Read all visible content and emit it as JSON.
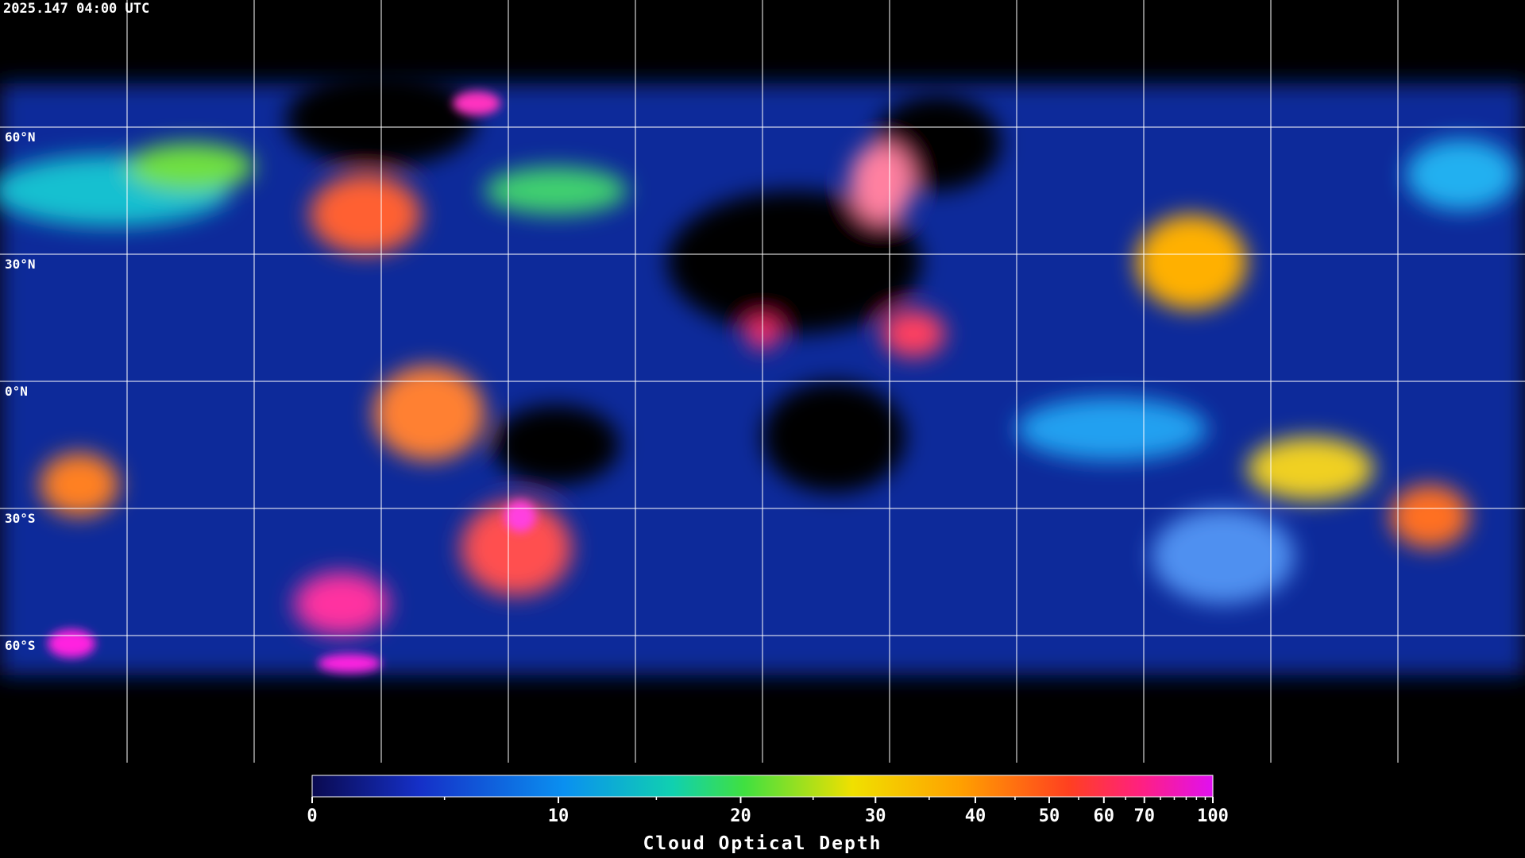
{
  "header": {
    "timestamp": "2025.147 04:00 UTC"
  },
  "map": {
    "latitude_labels": [
      "60°N",
      "30°N",
      "0°N",
      "30°S",
      "60°S"
    ]
  },
  "colorbar": {
    "label": "Cloud Optical Depth",
    "range": [
      0,
      100
    ],
    "ticks": [
      0,
      10,
      20,
      30,
      40,
      50,
      60,
      70,
      100
    ],
    "minor_ticks": [
      5,
      15,
      25,
      35,
      45,
      55,
      65,
      75,
      80,
      85,
      90,
      95
    ]
  }
}
